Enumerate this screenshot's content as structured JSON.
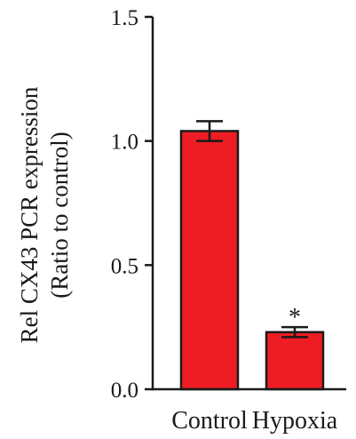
{
  "chart_data": {
    "type": "bar",
    "categories": [
      "Control",
      "Hypoxia"
    ],
    "values": [
      1.04,
      0.23
    ],
    "errors": [
      0.04,
      0.02
    ],
    "ylabel_lines": [
      "Rel CX43 PCR expression",
      "(Ratio to control)"
    ],
    "ylim": [
      0,
      1.5
    ],
    "yticks": [
      {
        "value": 0.0,
        "label": "0.0"
      },
      {
        "value": 0.5,
        "label": "0.5"
      },
      {
        "value": 1.0,
        "label": "1.0"
      },
      {
        "value": 1.5,
        "label": "1.5"
      }
    ],
    "annotations": [
      {
        "category": "Hypoxia",
        "text": "*"
      }
    ],
    "bar_color": "#ee1d23",
    "edge_color": "#1a1a1a",
    "grid": false,
    "legend": "none"
  }
}
